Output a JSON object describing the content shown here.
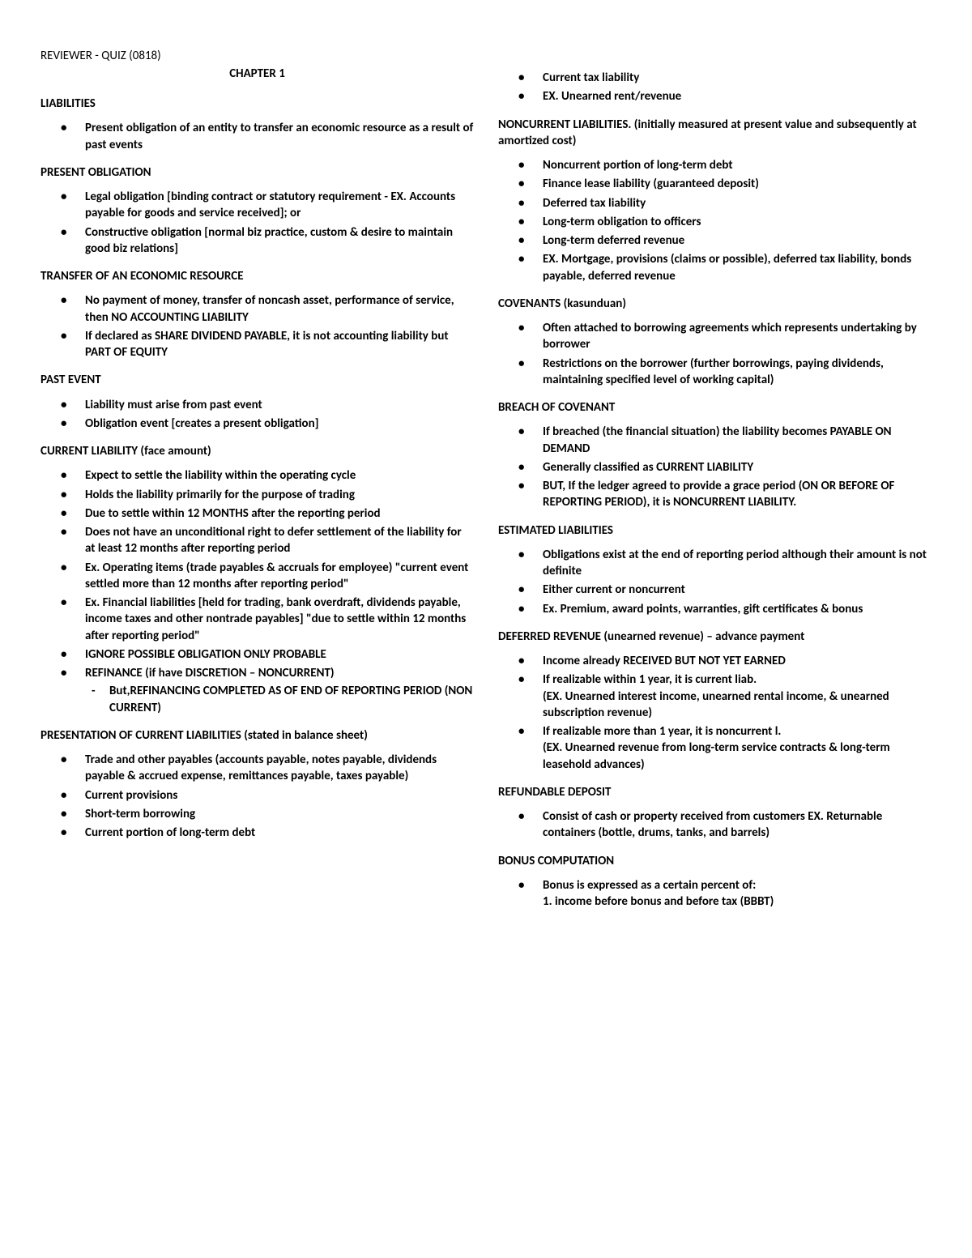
{
  "doc_header": "REVIEWER - QUIZ (0818)",
  "chapter": "CHAPTER 1",
  "left": {
    "sections": [
      {
        "title": "LIABILITIES",
        "items": [
          "Present obligation of an entity to transfer an economic resource as a result of past events"
        ]
      },
      {
        "title": "PRESENT OBLIGATION",
        "items": [
          "Legal obligation [binding contract or statutory requirement - EX. Accounts payable for goods and service received]; or",
          "Constructive obligation [normal biz practice, custom & desire to maintain good biz relations]"
        ]
      },
      {
        "title": "TRANSFER OF AN ECONOMIC RESOURCE",
        "items": [
          "No payment of money, transfer of noncash asset, performance of service, then NO ACCOUNTING LIABILITY",
          "If declared as SHARE DIVIDEND PAYABLE, it is not accounting liability but PART OF EQUITY"
        ]
      },
      {
        "title": "PAST EVENT",
        "items": [
          "Liability must arise from past event",
          "Obligation event [creates a present obligation]"
        ]
      },
      {
        "title": "CURRENT LIABILITY (face amount)",
        "items": [
          "Expect to settle the liability within the operating cycle",
          "Holds the liability primarily for the purpose of trading",
          "Due to settle within 12 MONTHS after the reporting period",
          "Does not have an unconditional right to defer settlement of the liability for at least 12 months after reporting period",
          "Ex. Operating items (trade payables & accruals for employee) \"current event settled more than 12 months after reporting period\"",
          "Ex. Financial liabilities [held for trading, bank overdraft, dividends payable, income taxes and other nontrade payables] \"due to settle within 12 months after reporting period\"",
          "IGNORE POSSIBLE OBLIGATION ONLY PROBABLE",
          {
            "text": "REFINANCE (if have DISCRETION – NONCURRENT)",
            "sub": [
              "But,REFINANCING COMPLETED AS OF END OF REPORTING PERIOD (NON CURRENT)"
            ]
          }
        ]
      },
      {
        "title": "PRESENTATION OF CURRENT LIABILITIES (stated in balance sheet)",
        "items": [
          "Trade and other payables (accounts payable, notes payable, dividends payable & accrued expense, remittances payable, taxes payable)",
          "Current provisions",
          "Short-term borrowing",
          "Current portion of long-term debt"
        ]
      }
    ]
  },
  "right": {
    "topItems": [
      "Current tax liability",
      "EX. Unearned rent/revenue"
    ],
    "sections": [
      {
        "title": "NONCURRENT LIABILITIES. (initially measured at present value and subsequently at amortized cost)",
        "items": [
          "Noncurrent portion of long-term debt",
          "Finance lease liability (guaranteed deposit)",
          "Deferred tax liability",
          "Long-term obligation to officers",
          "Long-term deferred revenue",
          "EX. Mortgage, provisions (claims or possible), deferred tax liability, bonds payable, deferred revenue"
        ]
      },
      {
        "title": "COVENANTS (kasunduan)",
        "items": [
          "Often attached to borrowing agreements which represents undertaking by borrower",
          "Restrictions on the borrower (further borrowings, paying dividends, maintaining specified level of working capital)"
        ]
      },
      {
        "title": "BREACH OF COVENANT",
        "items": [
          "If breached (the financial situation) the liability becomes PAYABLE ON DEMAND",
          "Generally classified as CURRENT LIABILITY",
          "BUT, If the ledger agreed to provide a grace period (ON OR BEFORE OF REPORTING PERIOD), it is NONCURRENT LIABILITY."
        ]
      },
      {
        "title": "ESTIMATED LIABILITIES",
        "items": [
          "Obligations exist at the end of reporting period although their amount is not definite",
          "Either current or noncurrent",
          "Ex. Premium, award points, warranties, gift certificates & bonus"
        ]
      },
      {
        "title": "DEFERRED REVENUE (unearned revenue) – advance payment",
        "items": [
          "Income already RECEIVED BUT NOT YET EARNED",
          "If realizable within 1 year, it is current liab.\n(EX. Unearned interest income, unearned rental income, & unearned subscription revenue)",
          "If realizable more than 1 year, it is noncurrent l.\n(EX. Unearned revenue from long-term service contracts & long-term leasehold advances)"
        ]
      },
      {
        "title": "REFUNDABLE DEPOSIT",
        "items": [
          "Consist of cash or property received from customers EX. Returnable containers (bottle, drums, tanks, and barrels)"
        ]
      },
      {
        "title": "BONUS COMPUTATION",
        "items": [
          "Bonus is expressed as a certain percent of:\n1. income before bonus and before tax (BBBT)"
        ]
      }
    ]
  }
}
